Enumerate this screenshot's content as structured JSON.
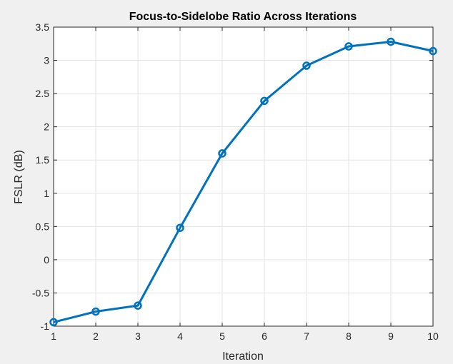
{
  "chart_data": {
    "type": "line",
    "title": "Focus-to-Sidelobe Ratio Across Iterations",
    "xlabel": "Iteration",
    "ylabel": "FSLR (dB)",
    "xlim": [
      1,
      10
    ],
    "ylim": [
      -1,
      3.5
    ],
    "xticks": [
      "1",
      "2",
      "3",
      "4",
      "5",
      "6",
      "7",
      "8",
      "9",
      "10"
    ],
    "xtick_values": [
      1,
      2,
      3,
      4,
      5,
      6,
      7,
      8,
      9,
      10
    ],
    "yticks": [
      "-1",
      "-0.5",
      "0",
      "0.5",
      "1",
      "1.5",
      "2",
      "2.5",
      "3",
      "3.5"
    ],
    "ytick_values": [
      -1,
      -0.5,
      0,
      0.5,
      1,
      1.5,
      2,
      2.5,
      3,
      3.5
    ],
    "grid": true,
    "marker": "circle",
    "series": [
      {
        "x": [
          1,
          2,
          3,
          4,
          5,
          6,
          7,
          8,
          9,
          10
        ],
        "values": [
          -0.94,
          -0.78,
          -0.69,
          0.48,
          1.6,
          2.39,
          2.92,
          3.21,
          3.28,
          3.14
        ],
        "color": "#0072BD"
      }
    ]
  }
}
